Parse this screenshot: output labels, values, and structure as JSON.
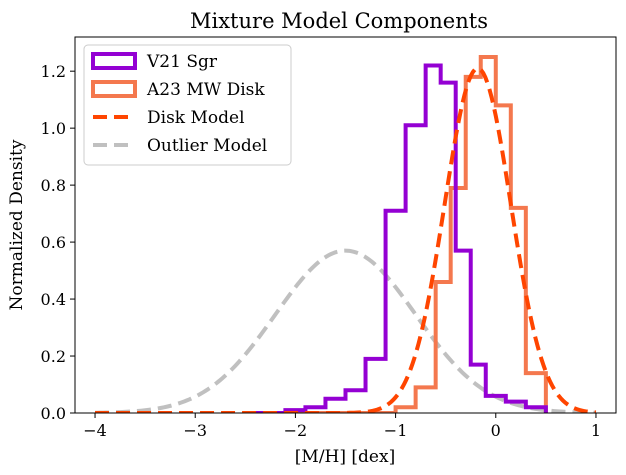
{
  "chart_data": {
    "type": "line",
    "title": "Mixture Model Components",
    "xlabel": "[M/H] [dex]",
    "ylabel": "Normalized Density",
    "xlim": [
      -4.2,
      1.2
    ],
    "ylim": [
      0,
      1.32
    ],
    "xticks": [
      -4,
      -3,
      -2,
      -1,
      0,
      1
    ],
    "yticks": [
      0.0,
      0.2,
      0.4,
      0.6,
      0.8,
      1.0,
      1.2
    ],
    "xtick_labels": [
      "−4",
      "−3",
      "−2",
      "−1",
      "0",
      "1"
    ],
    "ytick_labels": [
      "0.0",
      "0.2",
      "0.4",
      "0.6",
      "0.8",
      "1.0",
      "1.2"
    ],
    "grid": false,
    "legend_position": "top-left",
    "series": [
      {
        "name": "V21 Sgr",
        "kind": "step-histogram",
        "color": "#9400D3",
        "bin_edges": [
          -2.5,
          -2.3,
          -2.1,
          -1.9,
          -1.7,
          -1.5,
          -1.3,
          -1.1,
          -0.9,
          -0.7,
          -0.55,
          -0.4,
          -0.25,
          -0.1,
          0.1,
          0.3,
          0.5
        ],
        "values": [
          0.0,
          0.0,
          0.01,
          0.02,
          0.05,
          0.08,
          0.19,
          0.71,
          1.01,
          1.22,
          1.16,
          0.57,
          0.17,
          0.06,
          0.04,
          0.02
        ]
      },
      {
        "name": "A23 MW Disk",
        "kind": "step-histogram",
        "color": "#F4784E",
        "bin_edges": [
          -2.0,
          -1.6,
          -1.3,
          -1.0,
          -0.8,
          -0.6,
          -0.45,
          -0.3,
          -0.15,
          0.0,
          0.15,
          0.3,
          0.5
        ],
        "values": [
          0.0,
          0.0,
          0.0,
          0.02,
          0.09,
          0.46,
          0.79,
          1.18,
          1.25,
          1.08,
          0.72,
          0.14
        ]
      },
      {
        "name": "Disk Model",
        "kind": "gaussian",
        "color": "#FF4500",
        "dash": "dashed",
        "mean": -0.18,
        "sigma": 0.33,
        "amplitude": 1.21
      },
      {
        "name": "Outlier Model",
        "kind": "gaussian",
        "color": "#C0C0C0",
        "dash": "dashed",
        "mean": -1.5,
        "sigma": 0.7,
        "amplitude": 0.57
      }
    ]
  }
}
